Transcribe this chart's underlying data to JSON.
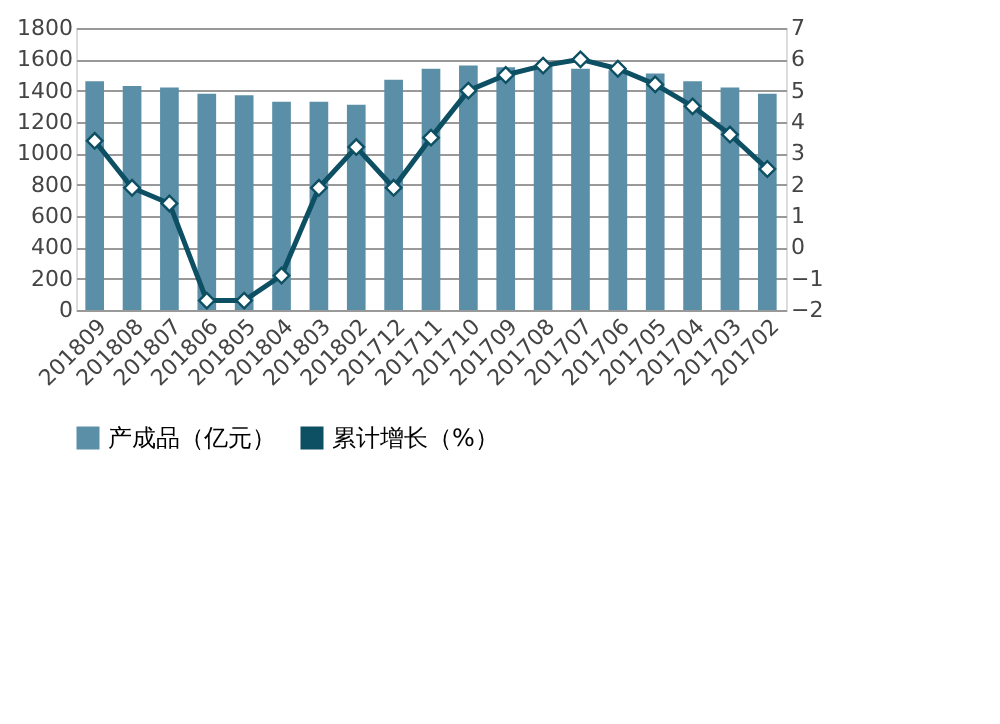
{
  "chart_data": {
    "type": "bar",
    "categories": [
      "201809",
      "201808",
      "201807",
      "201806",
      "201805",
      "201804",
      "201803",
      "201802",
      "201712",
      "201711",
      "201710",
      "201709",
      "201708",
      "201707",
      "201706",
      "201705",
      "201704",
      "201703",
      "201702"
    ],
    "series": [
      {
        "name": "产成品（亿元）",
        "color": "#5b8fa8",
        "values": [
          1460,
          1430,
          1420,
          1380,
          1370,
          1330,
          1330,
          1310,
          1470,
          1540,
          1560,
          1550,
          1560,
          1540,
          1530,
          1510,
          1460,
          1420,
          1380
        ]
      },
      {
        "name": "累计增长（%）",
        "type": "line",
        "axis": "y2",
        "color": "#0d4f63",
        "marker": "diamond",
        "values": [
          3.4,
          1.9,
          1.4,
          -1.7,
          -1.7,
          -0.9,
          1.9,
          3.2,
          1.9,
          3.5,
          5.0,
          5.5,
          5.8,
          6.0,
          5.7,
          5.2,
          4.5,
          3.6,
          2.5
        ]
      }
    ],
    "ylim": [
      0,
      1800
    ],
    "yticks": [
      0,
      200,
      400,
      600,
      800,
      1000,
      1200,
      1400,
      1600,
      1800
    ],
    "y2lim": [
      -2,
      7
    ],
    "y2ticks": [
      -2,
      -1,
      0,
      1,
      2,
      3,
      4,
      5,
      6,
      7
    ],
    "grid": "y",
    "legend": "bottom"
  }
}
